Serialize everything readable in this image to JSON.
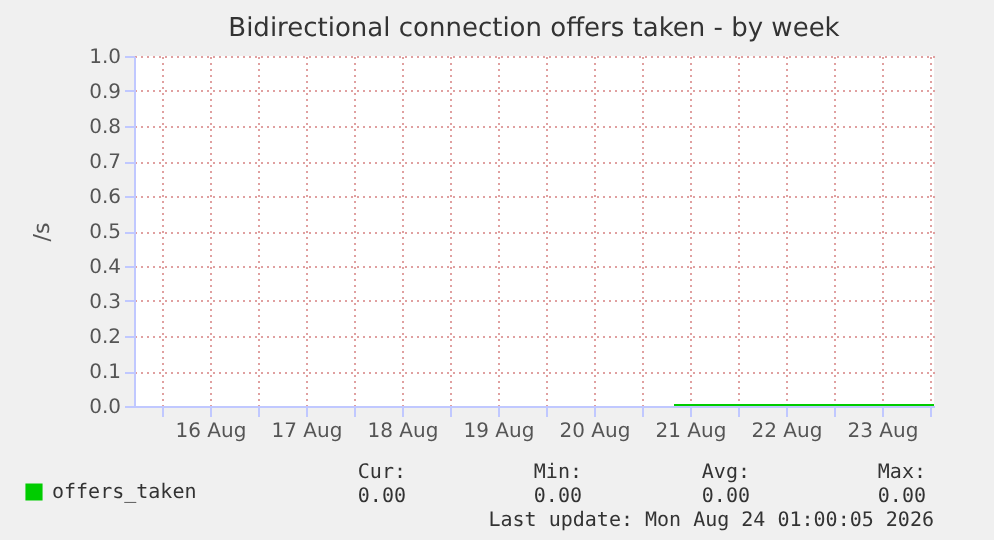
{
  "chart_data": {
    "type": "line",
    "title": "Bidirectional connection offers taken - by week",
    "ylabel": "/s",
    "series": [
      {
        "name": "offers_taken",
        "color": "#00cc00",
        "x": [
          "2026-08-21T08:00",
          "2026-08-24T01:00"
        ],
        "values": [
          0,
          0
        ]
      }
    ],
    "xlim": [
      "2026-08-15T17:00",
      "2026-08-24T01:00"
    ],
    "xticks": [
      {
        "value": "2026-08-16T00:00",
        "label": null
      },
      {
        "value": "2026-08-16T12:00",
        "label": "16 Aug"
      },
      {
        "value": "2026-08-17T00:00",
        "label": null
      },
      {
        "value": "2026-08-17T12:00",
        "label": "17 Aug"
      },
      {
        "value": "2026-08-18T00:00",
        "label": null
      },
      {
        "value": "2026-08-18T12:00",
        "label": "18 Aug"
      },
      {
        "value": "2026-08-19T00:00",
        "label": null
      },
      {
        "value": "2026-08-19T12:00",
        "label": "19 Aug"
      },
      {
        "value": "2026-08-20T00:00",
        "label": null
      },
      {
        "value": "2026-08-20T12:00",
        "label": "20 Aug"
      },
      {
        "value": "2026-08-21T00:00",
        "label": null
      },
      {
        "value": "2026-08-21T12:00",
        "label": "21 Aug"
      },
      {
        "value": "2026-08-22T00:00",
        "label": null
      },
      {
        "value": "2026-08-22T12:00",
        "label": "22 Aug"
      },
      {
        "value": "2026-08-23T00:00",
        "label": null
      },
      {
        "value": "2026-08-23T12:00",
        "label": "23 Aug"
      },
      {
        "value": "2026-08-24T00:00",
        "label": null
      }
    ],
    "ylim": [
      0,
      1
    ],
    "yticks": [
      {
        "value": 0,
        "label": "0.0"
      },
      {
        "value": 0.1,
        "label": "0.1"
      },
      {
        "value": 0.2,
        "label": "0.2"
      },
      {
        "value": 0.3,
        "label": "0.3"
      },
      {
        "value": 0.4,
        "label": "0.4"
      },
      {
        "value": 0.5,
        "label": "0.5"
      },
      {
        "value": 0.6,
        "label": "0.6"
      },
      {
        "value": 0.7,
        "label": "0.7"
      },
      {
        "value": 0.8,
        "label": "0.8"
      },
      {
        "value": 0.9,
        "label": "0.9"
      },
      {
        "value": 1,
        "label": "1.0"
      }
    ],
    "grid": true,
    "legend": "bottom left",
    "marker": "none",
    "line_style": "solid",
    "annotations": [
      "Cur:",
      "Min:",
      "Avg:",
      "Max:",
      "0.00",
      "0.00",
      "0.00",
      "0.00",
      "Last update: Mon Aug 24 01:00:05 2026"
    ]
  }
}
